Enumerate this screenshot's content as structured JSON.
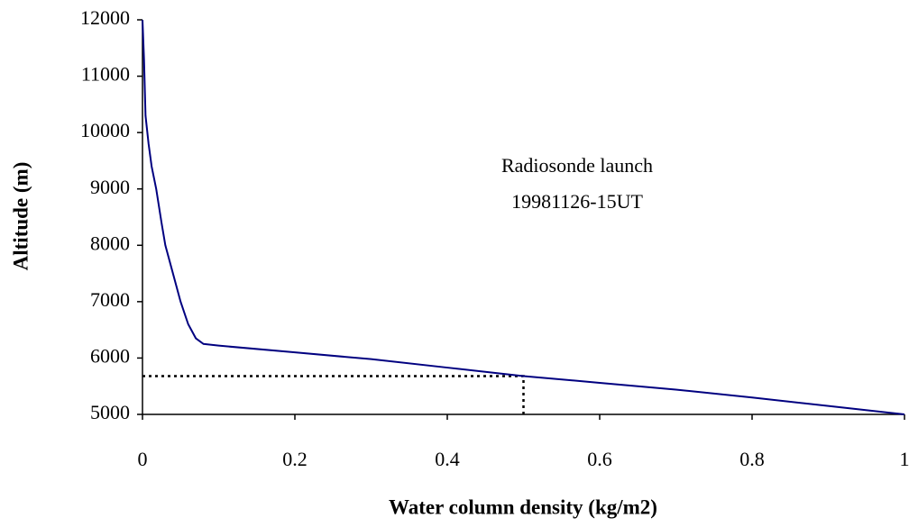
{
  "chart_data": {
    "type": "line",
    "x_label": "Water column density (kg/m2)",
    "y_label": "Altitude (m)",
    "annotation": [
      "Radiosonde launch",
      "19981126-15UT"
    ],
    "x": [
      0,
      0.002,
      0.004,
      0.008,
      0.012,
      0.018,
      0.025,
      0.03,
      0.04,
      0.05,
      0.06,
      0.07,
      0.08,
      0.1,
      0.2,
      0.3,
      0.4,
      0.5,
      0.6,
      0.7,
      0.8,
      0.9,
      1.0
    ],
    "values": [
      12000,
      11300,
      10300,
      9800,
      9400,
      9000,
      8400,
      8000,
      7500,
      7000,
      6600,
      6350,
      6250,
      6220,
      6100,
      5980,
      5830,
      5680,
      5560,
      5440,
      5300,
      5150,
      5000
    ],
    "color": "#000080",
    "reference_point": {
      "x": 0.5,
      "y": 5680
    },
    "xlim": [
      0,
      1
    ],
    "ylim": [
      5000,
      12000
    ],
    "xticks": [
      0,
      0.2,
      0.4,
      0.6,
      0.8,
      1
    ],
    "yticks": [
      5000,
      6000,
      7000,
      8000,
      9000,
      10000,
      11000,
      12000
    ]
  }
}
